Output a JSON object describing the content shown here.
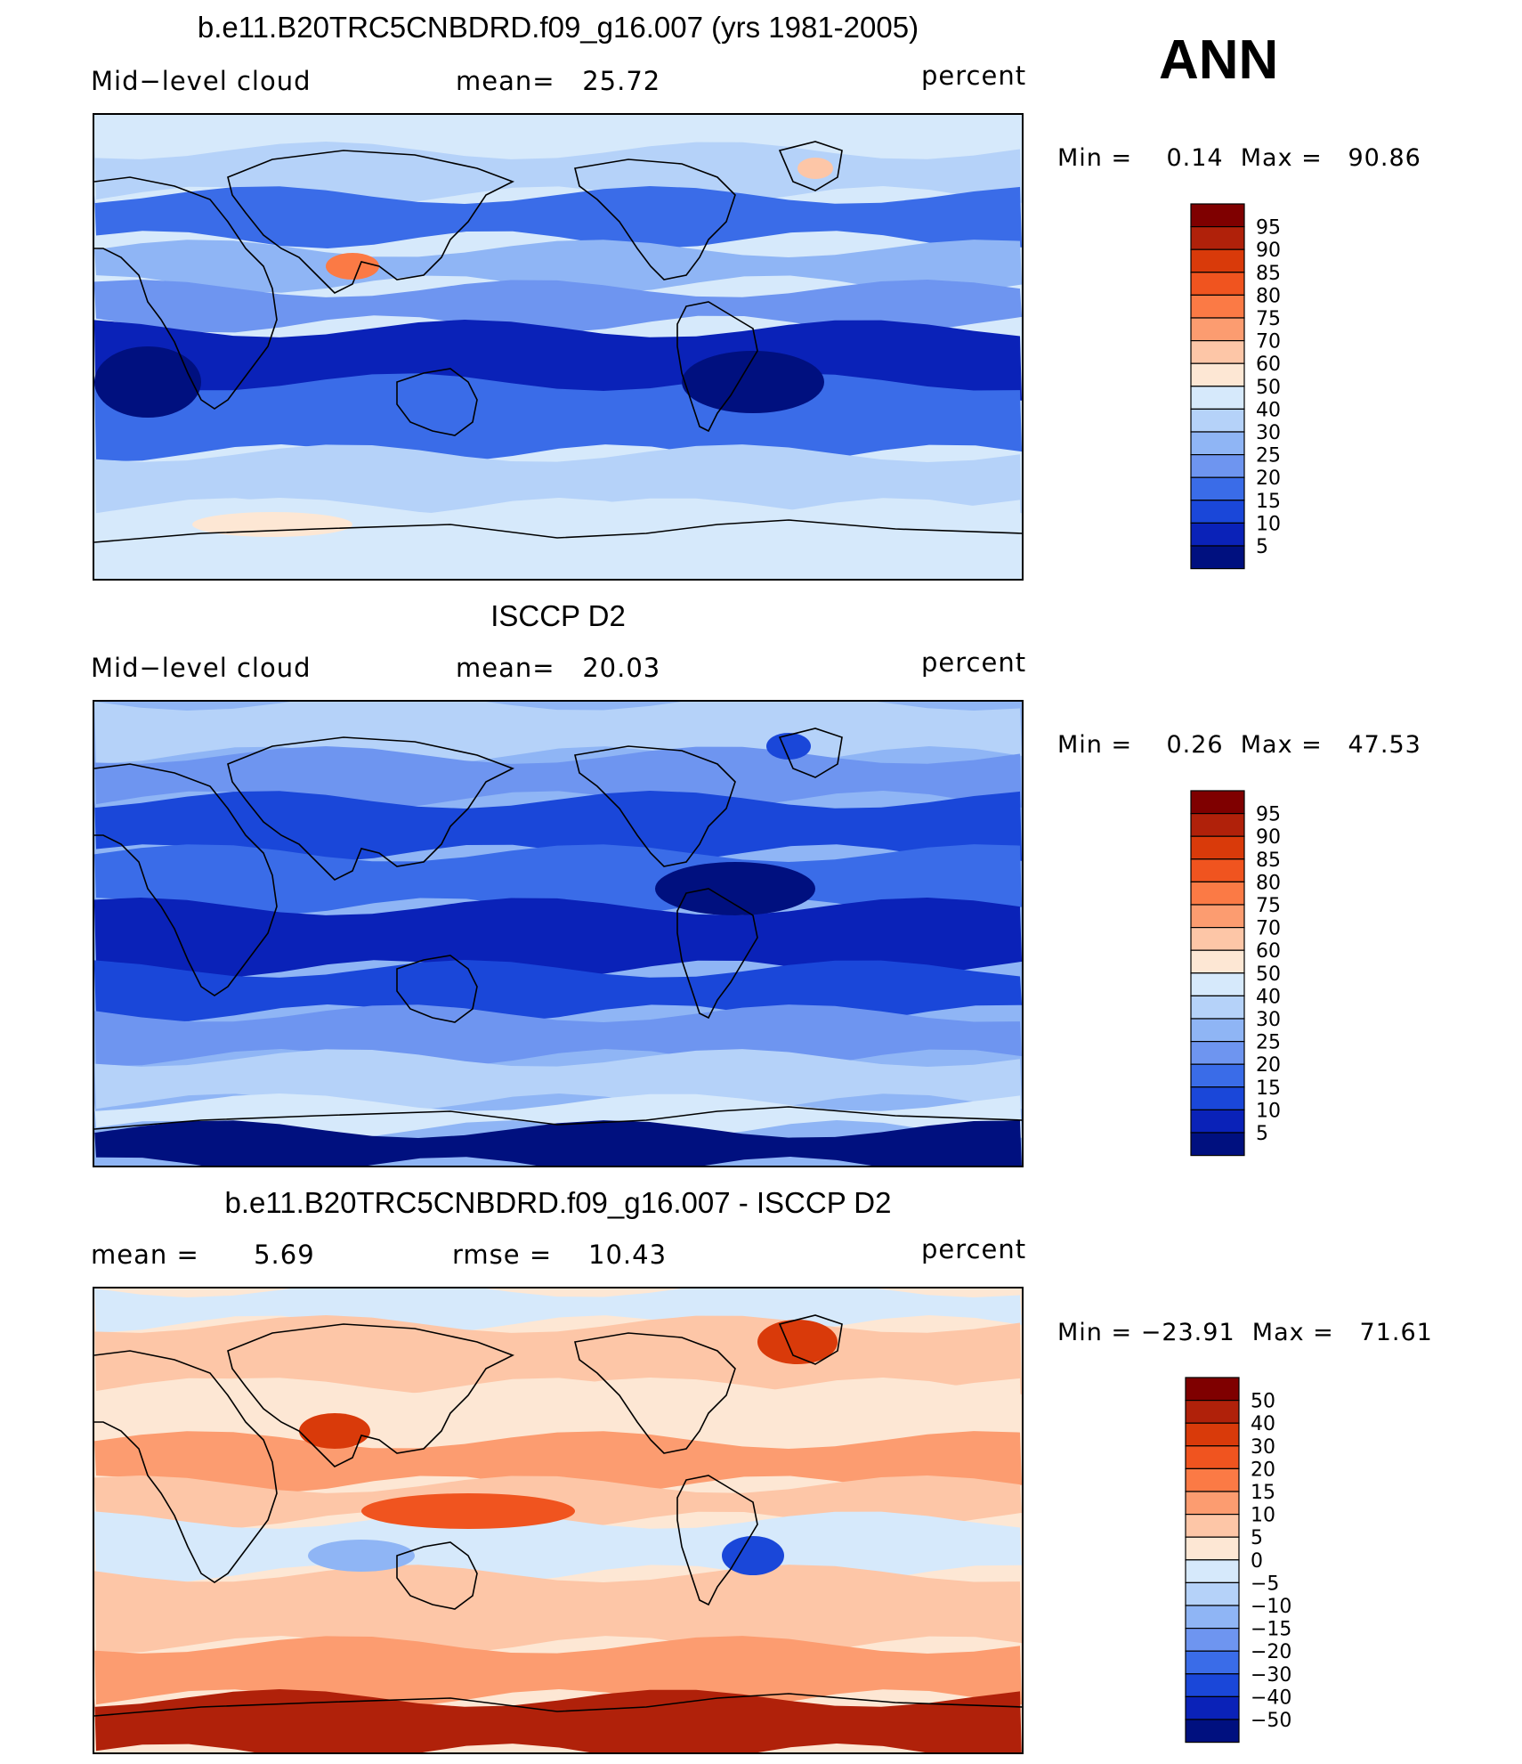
{
  "season": "ANN",
  "panels": [
    {
      "id": "model",
      "title": "b.e11.B20TRC5CNBDRD.f09_g16.007 (yrs 1981-2005)",
      "left_label": "Mid−level cloud",
      "center_label": "mean=   25.72",
      "units": "percent",
      "min_max": "Min =    0.14  Max =   90.86",
      "levels": [
        "95",
        "90",
        "85",
        "80",
        "75",
        "70",
        "60",
        "50",
        "40",
        "30",
        "25",
        "20",
        "15",
        "10",
        "5"
      ]
    },
    {
      "id": "obs",
      "title": "ISCCP D2",
      "left_label": "Mid−level cloud",
      "center_label": "mean=   20.03",
      "units": "percent",
      "min_max": "Min =    0.26  Max =   47.53",
      "levels": [
        "95",
        "90",
        "85",
        "80",
        "75",
        "70",
        "60",
        "50",
        "40",
        "30",
        "25",
        "20",
        "15",
        "10",
        "5"
      ]
    },
    {
      "id": "diff",
      "title": "b.e11.B20TRC5CNBDRD.f09_g16.007 - ISCCP D2",
      "left_label": "mean =      5.69",
      "center_label": "rmse =    10.43",
      "units": "percent",
      "min_max": "Min = −23.91  Max =   71.61",
      "levels": [
        "50",
        "40",
        "30",
        "20",
        "15",
        "10",
        "5",
        "0",
        "−5",
        "−10",
        "−15",
        "−20",
        "−30",
        "−40",
        "−50"
      ]
    }
  ],
  "colors": {
    "abs_scale": [
      "#7f0000",
      "#b0210a",
      "#d93a0a",
      "#f0541f",
      "#fb7a45",
      "#fc9c70",
      "#fdc6a7",
      "#fde7d4",
      "#d6e9fb",
      "#b5d2f9",
      "#8fb5f5",
      "#6e95f0",
      "#3a6ce8",
      "#1a47d9",
      "#0a22b8",
      "#00107f"
    ],
    "diff_scale": [
      "#7f0000",
      "#b0210a",
      "#d93a0a",
      "#f0541f",
      "#fb7a45",
      "#fc9c70",
      "#fdc6a7",
      "#fde7d4",
      "#d6e9fb",
      "#b5d2f9",
      "#8fb5f5",
      "#6e95f0",
      "#3a6ce8",
      "#1a47d9",
      "#0a22b8",
      "#00107f"
    ]
  }
}
